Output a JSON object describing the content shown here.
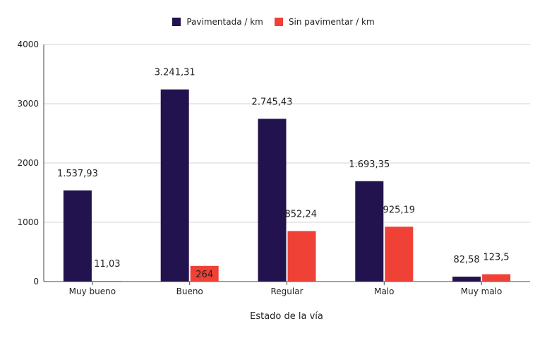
{
  "chart_data": {
    "type": "bar",
    "title": "",
    "xlabel": "Estado de la vía",
    "ylabel": "",
    "ylim": [
      0,
      4000
    ],
    "yticks": [
      0,
      1000,
      2000,
      3000,
      4000
    ],
    "grid": true,
    "legend_position": "top-center",
    "categories": [
      "Muy bueno",
      "Bueno",
      "Regular",
      "Malo",
      "Muy malo"
    ],
    "series": [
      {
        "name": "Pavimentada / km",
        "color": "#22124d",
        "values": [
          1537.93,
          3241.31,
          2745.43,
          1693.35,
          82.58
        ],
        "labels": [
          "1.537,93",
          "3.241,31",
          "2.745,43",
          "1.693,35",
          "82,58"
        ]
      },
      {
        "name": "Sin pavimentar / km",
        "color": "#ef4136",
        "values": [
          11.03,
          264,
          852.24,
          925.19,
          123.5
        ],
        "labels": [
          "11,03",
          "264",
          "852,24",
          "925,19",
          "123,5"
        ]
      }
    ]
  }
}
